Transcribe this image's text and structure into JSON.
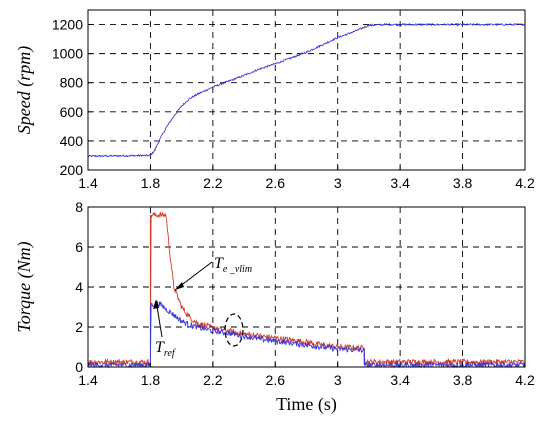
{
  "chart_data": [
    {
      "type": "line",
      "ylabel": "Speed (rpm)",
      "xlim": [
        1.4,
        4.2
      ],
      "ylim": [
        200,
        1300
      ],
      "xticks": [
        "1.4",
        "1.8",
        "2.2",
        "2.6",
        "3",
        "3.4",
        "3.8",
        "4.2"
      ],
      "yticks": [
        "200",
        "400",
        "600",
        "800",
        "1000",
        "1200"
      ],
      "grid": true,
      "series": [
        {
          "color": "#3a3ad8",
          "x": [
            1.4,
            1.8,
            1.83,
            1.86,
            1.9,
            1.95,
            2.0,
            2.05,
            2.1,
            2.2,
            2.3,
            2.4,
            2.5,
            2.6,
            2.7,
            2.8,
            2.9,
            3.0,
            3.1,
            3.2,
            3.3,
            3.6,
            4.2
          ],
          "y": [
            295,
            300,
            340,
            410,
            490,
            570,
            640,
            690,
            720,
            770,
            810,
            850,
            895,
            930,
            970,
            1010,
            1060,
            1110,
            1150,
            1195,
            1200,
            1200,
            1200
          ]
        }
      ]
    },
    {
      "type": "line",
      "ylabel": "Torque (Nm)",
      "xlabel": "Time (s)",
      "xlim": [
        1.4,
        4.2
      ],
      "ylim": [
        0,
        8
      ],
      "xticks": [
        "1.4",
        "1.8",
        "2.2",
        "2.6",
        "3",
        "3.4",
        "3.8",
        "4.2"
      ],
      "yticks": [
        "0",
        "2",
        "4",
        "6",
        "8"
      ],
      "grid": true,
      "series": [
        {
          "color": "#d23a2a",
          "x": [
            1.4,
            1.79,
            1.8,
            1.8,
            1.9,
            1.92,
            1.95,
            2.0,
            2.05,
            2.1,
            2.2,
            2.3,
            2.4,
            2.5,
            2.6,
            2.7,
            2.8,
            2.9,
            3.0,
            3.15,
            3.17,
            3.17,
            4.2
          ],
          "y": [
            0.25,
            0.25,
            0.25,
            7.6,
            7.6,
            6.0,
            4.0,
            3.0,
            2.5,
            2.2,
            1.95,
            1.8,
            1.65,
            1.55,
            1.45,
            1.35,
            1.25,
            1.1,
            1.0,
            0.95,
            0.95,
            0.25,
            0.25
          ]
        },
        {
          "color": "#3a3ad8",
          "x": [
            1.4,
            1.79,
            1.8,
            1.8,
            1.85,
            1.9,
            1.95,
            2.0,
            2.05,
            2.1,
            2.2,
            2.3,
            2.4,
            2.5,
            2.6,
            2.7,
            2.8,
            2.9,
            3.0,
            3.15,
            3.17,
            3.17,
            4.2
          ],
          "y": [
            0.1,
            0.1,
            0.1,
            3.1,
            3.2,
            2.9,
            2.6,
            2.3,
            2.1,
            2.0,
            1.8,
            1.7,
            1.55,
            1.4,
            1.3,
            1.2,
            1.1,
            1.0,
            0.9,
            0.85,
            0.85,
            0.1,
            0.1
          ]
        }
      ],
      "annotations": [
        {
          "base": "T",
          "sub": "e _vlim"
        },
        {
          "base": "T",
          "sub": "ref"
        }
      ]
    }
  ]
}
